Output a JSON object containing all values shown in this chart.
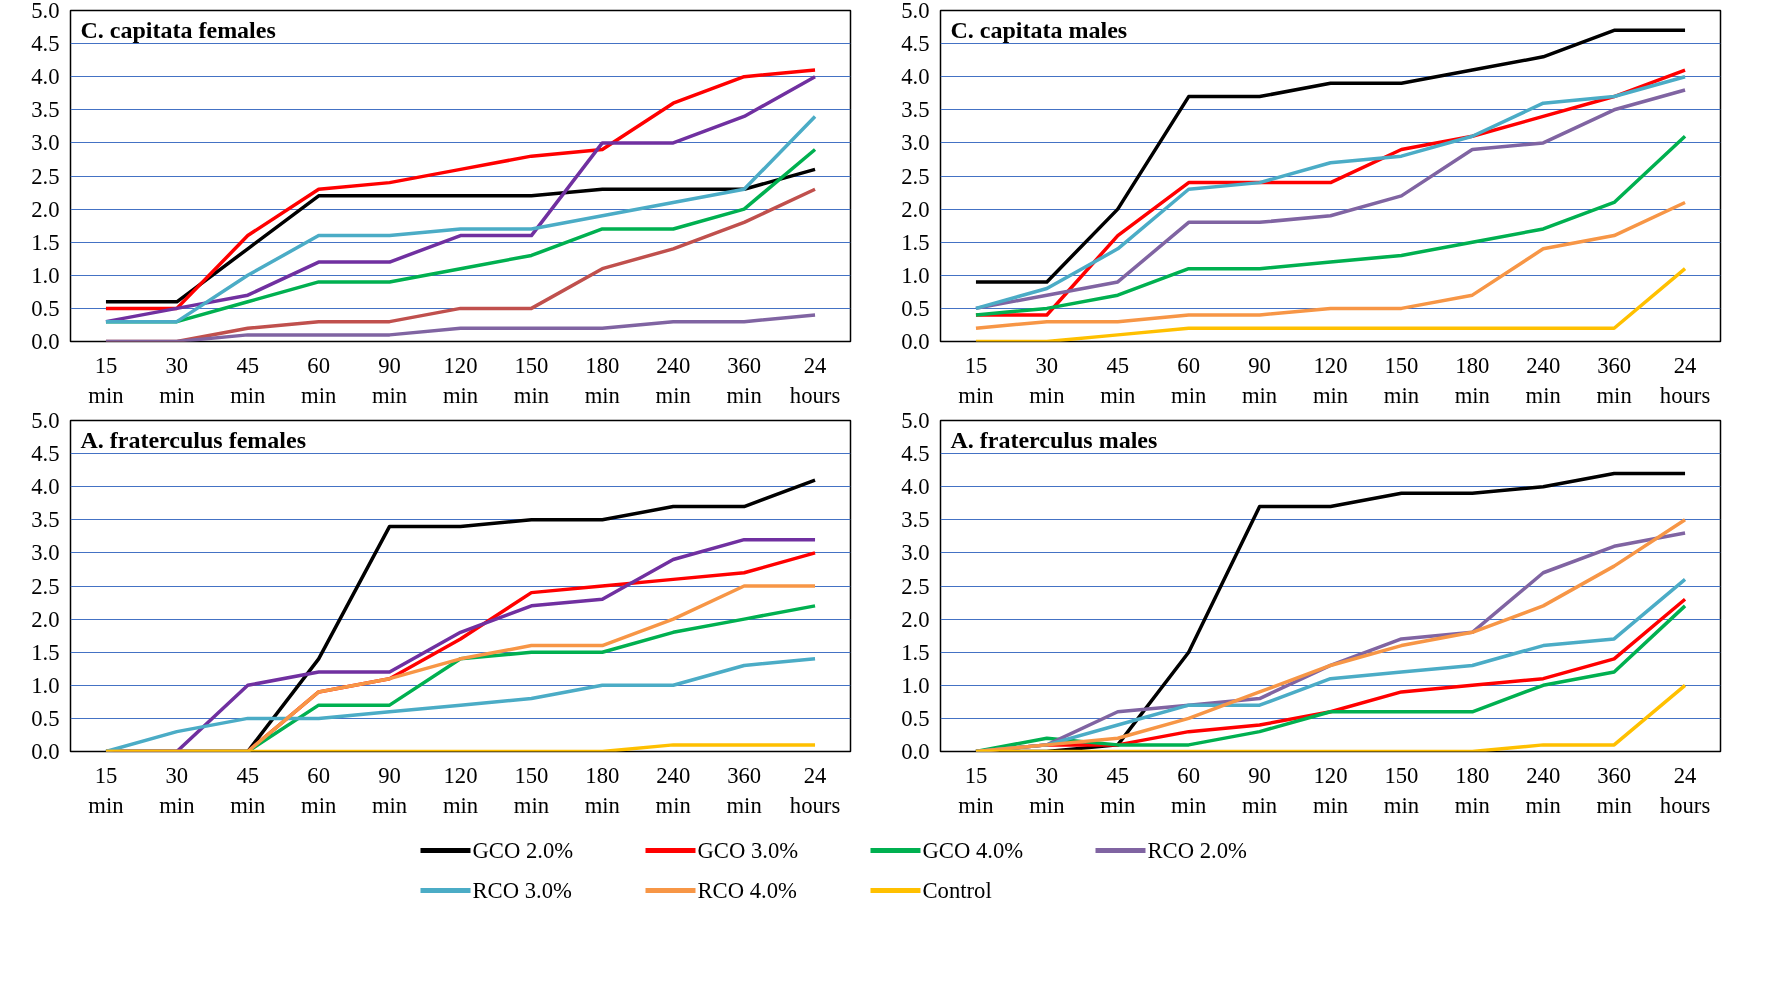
{
  "chart_data": [
    {
      "type": "line",
      "title": "C. capitata females",
      "categories": [
        "15 min",
        "30 min",
        "45 min",
        "60 min",
        "90 min",
        "120 min",
        "150 min",
        "180 min",
        "240 min",
        "360 min",
        "24 hours"
      ],
      "ylim": [
        0,
        5
      ],
      "yticks": [
        {
          "value": 0,
          "label": "0.0"
        },
        {
          "value": 0.5,
          "label": "0.5"
        },
        {
          "value": 1,
          "label": "1.0"
        },
        {
          "value": 1.5,
          "label": "1.5"
        },
        {
          "value": 2,
          "label": "2.0"
        },
        {
          "value": 2.5,
          "label": "2.5"
        },
        {
          "value": 3,
          "label": "3.0"
        },
        {
          "value": 3.5,
          "label": "3.5"
        },
        {
          "value": 4,
          "label": "4.0"
        },
        {
          "value": 4.5,
          "label": "4.5"
        },
        {
          "value": 5,
          "label": "5.0"
        }
      ],
      "grid": "y",
      "marker": "none",
      "line_style": "solid",
      "series": [
        {
          "color": "#000000",
          "values": [
            0.6,
            0.6,
            1.4,
            2.2,
            2.2,
            2.2,
            2.2,
            2.3,
            2.3,
            2.3,
            2.6
          ]
        },
        {
          "color": "#ff0000",
          "values": [
            0.5,
            0.5,
            1.6,
            2.3,
            2.4,
            2.6,
            2.8,
            2.9,
            3.6,
            4.0,
            4.1
          ]
        },
        {
          "color": "#00b050",
          "values": [
            0.3,
            0.3,
            0.6,
            0.9,
            0.9,
            1.1,
            1.3,
            1.7,
            1.7,
            2.0,
            2.9
          ]
        },
        {
          "color": "#7030a0",
          "values": [
            0.3,
            0.5,
            0.7,
            1.2,
            1.2,
            1.6,
            1.6,
            3.0,
            3.0,
            3.4,
            4.0
          ]
        },
        {
          "color": "#4bacc6",
          "values": [
            0.3,
            0.3,
            1.0,
            1.6,
            1.6,
            1.7,
            1.7,
            1.9,
            2.1,
            2.3,
            3.4
          ]
        },
        {
          "color": "#c0504d",
          "values": [
            0.0,
            0.0,
            0.2,
            0.3,
            0.3,
            0.5,
            0.5,
            1.1,
            1.4,
            1.8,
            2.3
          ]
        },
        {
          "color": "#8064a2",
          "values": [
            0.0,
            0.0,
            0.1,
            0.1,
            0.1,
            0.2,
            0.2,
            0.2,
            0.3,
            0.3,
            0.4
          ]
        }
      ]
    },
    {
      "type": "line",
      "title": "C. capitata males",
      "categories": [
        "15 min",
        "30 min",
        "45 min",
        "60 min",
        "90 min",
        "120 min",
        "150 min",
        "180 min",
        "240 min",
        "360 min",
        "24 hours"
      ],
      "ylim": [
        0,
        5
      ],
      "yticks": [
        {
          "value": 0,
          "label": "0.0"
        },
        {
          "value": 0.5,
          "label": "0.5"
        },
        {
          "value": 1,
          "label": "1.0"
        },
        {
          "value": 1.5,
          "label": "1.5"
        },
        {
          "value": 2,
          "label": "2.0"
        },
        {
          "value": 2.5,
          "label": "2.5"
        },
        {
          "value": 3,
          "label": "3.0"
        },
        {
          "value": 3.5,
          "label": "3.5"
        },
        {
          "value": 4,
          "label": "4.0"
        },
        {
          "value": 4.5,
          "label": "4.5"
        },
        {
          "value": 5,
          "label": "5.0"
        }
      ],
      "grid": "y",
      "marker": "none",
      "line_style": "solid",
      "series": [
        {
          "color": "#000000",
          "values": [
            0.9,
            0.9,
            2.0,
            3.7,
            3.7,
            3.9,
            3.9,
            4.1,
            4.3,
            4.7,
            4.7
          ]
        },
        {
          "color": "#ff0000",
          "values": [
            0.4,
            0.4,
            1.6,
            2.4,
            2.4,
            2.4,
            2.9,
            3.1,
            3.4,
            3.7,
            4.1
          ]
        },
        {
          "color": "#00b050",
          "values": [
            0.4,
            0.5,
            0.7,
            1.1,
            1.1,
            1.2,
            1.3,
            1.5,
            1.7,
            2.1,
            3.1
          ]
        },
        {
          "color": "#8064a2",
          "values": [
            0.5,
            0.7,
            0.9,
            1.8,
            1.8,
            1.9,
            2.2,
            2.9,
            3.0,
            3.5,
            3.8
          ]
        },
        {
          "color": "#4bacc6",
          "values": [
            0.5,
            0.8,
            1.4,
            2.3,
            2.4,
            2.7,
            2.8,
            3.1,
            3.6,
            3.7,
            4.0
          ]
        },
        {
          "color": "#f79646",
          "values": [
            0.2,
            0.3,
            0.3,
            0.4,
            0.4,
            0.5,
            0.5,
            0.7,
            1.4,
            1.6,
            2.1
          ]
        },
        {
          "color": "#ffc000",
          "values": [
            0.0,
            0.0,
            0.1,
            0.2,
            0.2,
            0.2,
            0.2,
            0.2,
            0.2,
            0.2,
            1.1
          ]
        }
      ]
    },
    {
      "type": "line",
      "title": "A. fraterculus females",
      "categories": [
        "15 min",
        "30 min",
        "45 min",
        "60 min",
        "90 min",
        "120 min",
        "150 min",
        "180 min",
        "240 min",
        "360 min",
        "24 hours"
      ],
      "ylim": [
        0,
        5
      ],
      "yticks": [
        {
          "value": 0,
          "label": "0.0"
        },
        {
          "value": 0.5,
          "label": "0.5"
        },
        {
          "value": 1,
          "label": "1.0"
        },
        {
          "value": 1.5,
          "label": "1.5"
        },
        {
          "value": 2,
          "label": "2.0"
        },
        {
          "value": 2.5,
          "label": "2.5"
        },
        {
          "value": 3,
          "label": "3.0"
        },
        {
          "value": 3.5,
          "label": "3.5"
        },
        {
          "value": 4,
          "label": "4.0"
        },
        {
          "value": 4.5,
          "label": "4.5"
        },
        {
          "value": 5,
          "label": "5.0"
        }
      ],
      "grid": "y",
      "marker": "none",
      "line_style": "solid",
      "series": [
        {
          "color": "#000000",
          "values": [
            0.0,
            0.0,
            0.0,
            1.4,
            3.4,
            3.4,
            3.5,
            3.5,
            3.7,
            3.7,
            4.1
          ]
        },
        {
          "color": "#ff0000",
          "values": [
            0.0,
            0.0,
            0.0,
            0.9,
            1.1,
            1.7,
            2.4,
            2.5,
            2.6,
            2.7,
            3.0
          ]
        },
        {
          "color": "#00b050",
          "values": [
            0.0,
            0.0,
            0.0,
            0.7,
            0.7,
            1.4,
            1.5,
            1.5,
            1.8,
            2.0,
            2.2
          ]
        },
        {
          "color": "#7030a0",
          "values": [
            0.0,
            0.0,
            1.0,
            1.2,
            1.2,
            1.8,
            2.2,
            2.3,
            2.9,
            3.2,
            3.2
          ]
        },
        {
          "color": "#4bacc6",
          "values": [
            0.0,
            0.3,
            0.5,
            0.5,
            0.6,
            0.7,
            0.8,
            1.0,
            1.0,
            1.3,
            1.4
          ]
        },
        {
          "color": "#f79646",
          "values": [
            0.0,
            0.0,
            0.0,
            0.9,
            1.1,
            1.4,
            1.6,
            1.6,
            2.0,
            2.5,
            2.5
          ]
        },
        {
          "color": "#ffc000",
          "values": [
            0.0,
            0.0,
            0.0,
            0.0,
            0.0,
            0.0,
            0.0,
            0.0,
            0.1,
            0.1,
            0.1
          ]
        }
      ]
    },
    {
      "type": "line",
      "title": "A. fraterculus males",
      "categories": [
        "15 min",
        "30 min",
        "45 min",
        "60 min",
        "90 min",
        "120 min",
        "150 min",
        "180 min",
        "240 min",
        "360 min",
        "24 hours"
      ],
      "ylim": [
        0,
        5
      ],
      "yticks": [
        {
          "value": 0,
          "label": "0.0"
        },
        {
          "value": 0.5,
          "label": "0.5"
        },
        {
          "value": 1,
          "label": "1.0"
        },
        {
          "value": 1.5,
          "label": "1.5"
        },
        {
          "value": 2,
          "label": "2.0"
        },
        {
          "value": 2.5,
          "label": "2.5"
        },
        {
          "value": 3,
          "label": "3.0"
        },
        {
          "value": 3.5,
          "label": "3.5"
        },
        {
          "value": 4,
          "label": "4.0"
        },
        {
          "value": 4.5,
          "label": "4.5"
        },
        {
          "value": 5,
          "label": "5.0"
        }
      ],
      "grid": "y",
      "legend": "bottom",
      "marker": "none",
      "line_style": "solid",
      "series": [
        {
          "name": "GCO 2.0%",
          "color": "#000000",
          "values": [
            0.0,
            0.0,
            0.1,
            1.5,
            3.7,
            3.7,
            3.9,
            3.9,
            4.0,
            4.2,
            4.2
          ]
        },
        {
          "name": "GCO 3.0%",
          "color": "#ff0000",
          "values": [
            0.0,
            0.1,
            0.1,
            0.3,
            0.4,
            0.6,
            0.9,
            1.0,
            1.1,
            1.4,
            2.3
          ]
        },
        {
          "name": "GCO 4.0%",
          "color": "#00b050",
          "values": [
            0.0,
            0.2,
            0.1,
            0.1,
            0.3,
            0.6,
            0.6,
            0.6,
            1.0,
            1.2,
            2.2
          ]
        },
        {
          "name": "RCO 2.0%",
          "color": "#8064a2",
          "values": [
            0.0,
            0.1,
            0.6,
            0.7,
            0.8,
            1.3,
            1.7,
            1.8,
            2.7,
            3.1,
            3.3
          ]
        },
        {
          "name": "RCO 3.0%",
          "color": "#4bacc6",
          "values": [
            0.0,
            0.1,
            0.4,
            0.7,
            0.7,
            1.1,
            1.2,
            1.3,
            1.6,
            1.7,
            2.6
          ]
        },
        {
          "name": "RCO 4.0%",
          "color": "#f79646",
          "values": [
            0.0,
            0.1,
            0.2,
            0.5,
            0.9,
            1.3,
            1.6,
            1.8,
            2.2,
            2.8,
            3.5
          ]
        },
        {
          "name": "Control",
          "color": "#ffc000",
          "values": [
            0.0,
            0.0,
            0.0,
            0.0,
            0.0,
            0.0,
            0.0,
            0.0,
            0.1,
            0.1,
            1.0
          ]
        }
      ]
    }
  ]
}
